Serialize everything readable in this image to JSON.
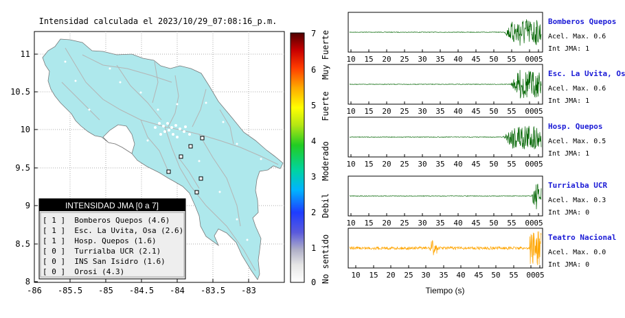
{
  "map": {
    "title": "Intensidad calculada el 2023/10/29_07:08:16_p.m.",
    "x_ticks": [
      "-86",
      "-85.5",
      "-85",
      "-84.5",
      "-84",
      "-83.5",
      "-83"
    ],
    "y_ticks": [
      "11",
      "10.5",
      "10",
      "9.5",
      "9",
      "8.5",
      "8"
    ],
    "land_color": "#aee8ec"
  },
  "legend": {
    "title": "INTENSIDAD JMA [0 a 7]",
    "items": [
      {
        "text": "[ 1 ]  Bomberos Quepos (4.6)"
      },
      {
        "text": "[ 1 ]  Esc. La Uvita, Osa (2.6)"
      },
      {
        "text": "[ 1 ]  Hosp. Quepos (1.6)"
      },
      {
        "text": "[ 0 ]  Turrialba UCR (2.1)"
      },
      {
        "text": "[ 0 ]  INS San Isidro (1.6)"
      },
      {
        "text": "[ 0 ]  Orosi (4.3)"
      }
    ]
  },
  "colorbar": {
    "ticks": [
      "7",
      "6",
      "5",
      "4",
      "3",
      "2",
      "1",
      "0"
    ],
    "labels": [
      "Muy Fuerte",
      "Fuerte",
      "Moderado",
      "Debil",
      "No sentido"
    ]
  },
  "waves": {
    "time_ticks": [
      "10",
      "15",
      "20",
      "25",
      "30",
      "35",
      "40",
      "45",
      "50",
      "55",
      "00",
      "05"
    ],
    "xlabel": "Tiempo (s)",
    "stations": [
      {
        "name": "Bomberos Quepos",
        "accel": "Acel. Max. 0.6",
        "int": "Int JMA: 1",
        "color": "#006400",
        "onset": 0.805,
        "amp": 0.95
      },
      {
        "name": "Esc. La Uvita, Osa",
        "accel": "Acel. Max. 0.6",
        "int": "Int JMA: 1",
        "color": "#006400",
        "onset": 0.84,
        "amp": 0.95
      },
      {
        "name": "Hosp. Quepos",
        "accel": "Acel. Max. 0.5",
        "int": "Int JMA: 1",
        "color": "#006400",
        "onset": 0.8,
        "amp": 0.9
      },
      {
        "name": "Turrialba UCR",
        "accel": "Acel. Max. 0.3",
        "int": "Int JMA: 0",
        "color": "#006400",
        "onset": 0.95,
        "amp": 0.85
      },
      {
        "name": "Teatro Nacional",
        "accel": "Acel. Max. 0.0",
        "int": "Int JMA: 0",
        "color": "#ffa500",
        "onset": 0.0,
        "amp": 0.85
      }
    ]
  },
  "chart_data": [
    {
      "type": "scatter",
      "title": "Intensidad calculada el 2023/10/29_07:08:16_p.m.",
      "xlim": [
        -86,
        -82.5
      ],
      "ylim": [
        8,
        11.3
      ],
      "legend": "bottom-left",
      "series": [
        {
          "name": "Bomberos Quepos",
          "intensity": 1,
          "value": 4.6
        },
        {
          "name": "Esc. La Uvita, Osa",
          "intensity": 1,
          "value": 2.6
        },
        {
          "name": "Hosp. Quepos",
          "intensity": 1,
          "value": 1.6
        },
        {
          "name": "Turrialba UCR",
          "intensity": 0,
          "value": 2.1
        },
        {
          "name": "INS San Isidro",
          "intensity": 0,
          "value": 1.6
        },
        {
          "name": "Orosi",
          "intensity": 0,
          "value": 4.3
        }
      ]
    },
    {
      "type": "line",
      "xlabel": "Tiempo (s)",
      "x_ticks": [
        "10",
        "15",
        "20",
        "25",
        "30",
        "35",
        "40",
        "45",
        "50",
        "55",
        "00",
        "05"
      ],
      "series": [
        {
          "name": "Bomberos Quepos",
          "max_accel": 0.6,
          "int_jma": 1
        },
        {
          "name": "Esc. La Uvita, Osa",
          "max_accel": 0.6,
          "int_jma": 1
        },
        {
          "name": "Hosp. Quepos",
          "max_accel": 0.5,
          "int_jma": 1
        },
        {
          "name": "Turrialba UCR",
          "max_accel": 0.3,
          "int_jma": 0
        },
        {
          "name": "Teatro Nacional",
          "max_accel": 0.0,
          "int_jma": 0
        }
      ]
    }
  ]
}
